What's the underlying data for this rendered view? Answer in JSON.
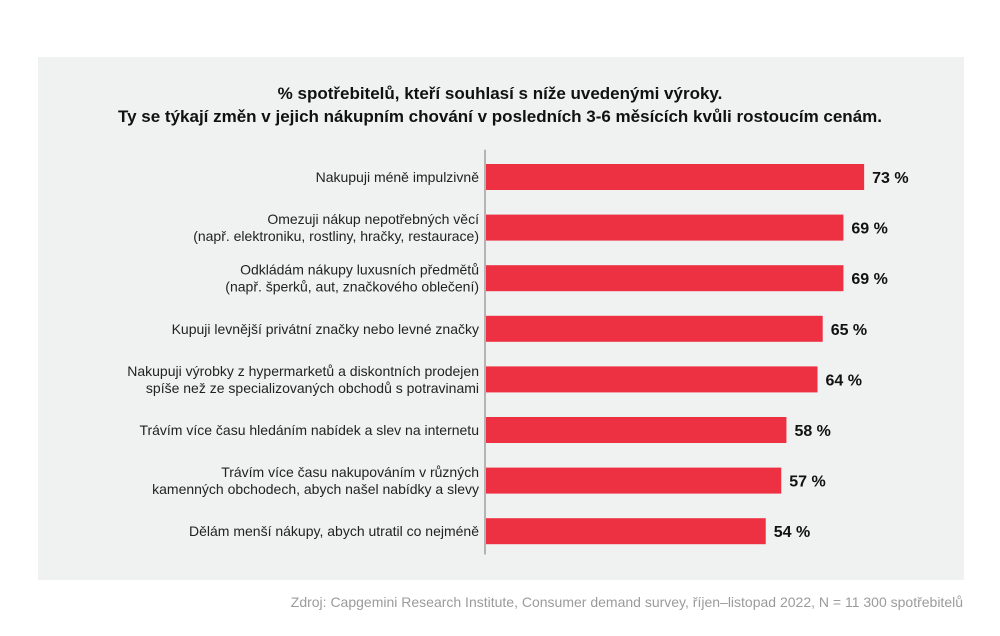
{
  "chart_data": {
    "type": "bar",
    "orientation": "horizontal",
    "title": [
      "% spotřebitelů, kteří souhlasí s níže uvedenými výroky.",
      "Ty se týkají změn v jejich nákupním chování v posledních 3-6 měsících kvůli rostoucím cenám."
    ],
    "categories": [
      [
        "Nakupuji méně impulzivně"
      ],
      [
        "Omezuji nákup nepotřebných věcí",
        "(např. elektroniku, rostliny, hračky, restaurace)"
      ],
      [
        "Odkládám nákupy luxusních předmětů",
        "(např. šperků, aut, značkového oblečení)"
      ],
      [
        "Kupuji levnější privátní značky nebo levné značky"
      ],
      [
        "Nakupuji výrobky z hypermarketů a diskontních prodejen",
        "spíše než ze specializovaných obchodů s potravinami"
      ],
      [
        "Trávím více času hledáním nabídek a slev na internetu"
      ],
      [
        "Trávím více času nakupováním v různých",
        "kamenných obchodech, abych našel nabídky a slevy"
      ],
      [
        "Dělám menší nákupy, abych utratil co nejméně"
      ]
    ],
    "values": [
      73,
      69,
      69,
      65,
      64,
      58,
      57,
      54
    ],
    "value_labels": [
      "73 %",
      "69 %",
      "69 %",
      "65 %",
      "64 %",
      "58 %",
      "57 %",
      "54 %"
    ],
    "xlim": [
      0,
      100
    ],
    "bar_color": "#ee3142",
    "grid": false,
    "legend": "none"
  },
  "source": "Zdroj: Capgemini Research Institute, Consumer demand survey, říjen–listopad 2022, N =  11 300 spotřebitelů"
}
